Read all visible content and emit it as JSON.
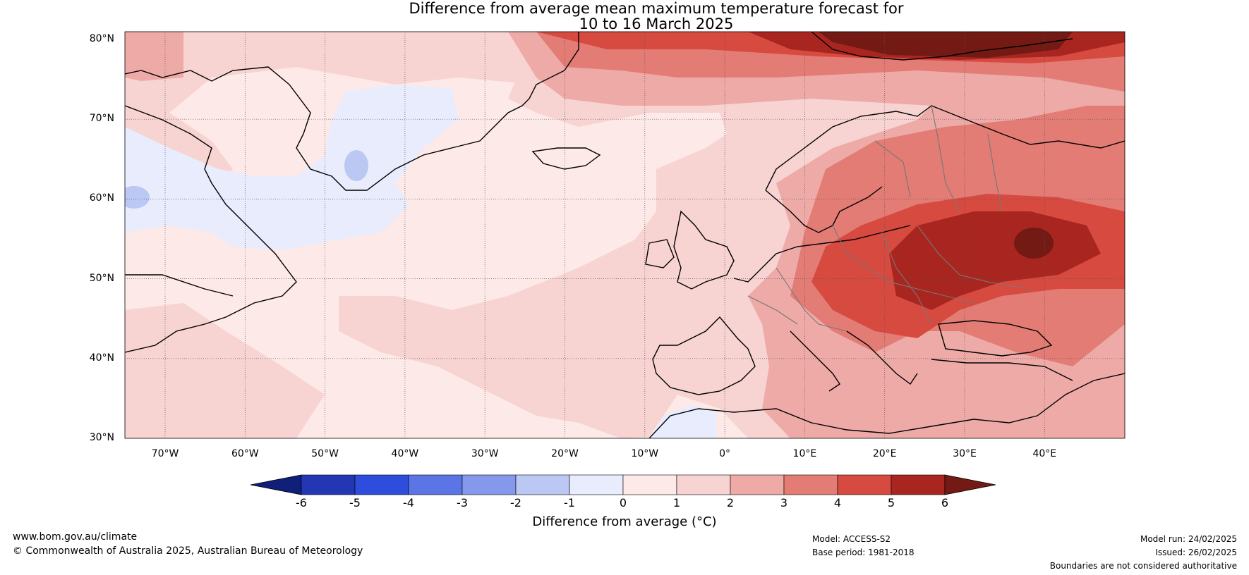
{
  "title_line1": "Difference from average mean maximum temperature forecast for",
  "title_line2": "10 to 16 March 2025",
  "lat_labels": [
    "80°N",
    "70°N",
    "60°N",
    "50°N",
    "40°N",
    "30°N"
  ],
  "lon_labels": [
    "70°W",
    "60°W",
    "50°W",
    "40°W",
    "30°W",
    "20°W",
    "10°W",
    "0°",
    "10°E",
    "20°E",
    "30°E",
    "40°E"
  ],
  "colorbar": {
    "ticks": [
      "-6",
      "-5",
      "-4",
      "-3",
      "-2",
      "-1",
      "0",
      "1",
      "2",
      "3",
      "4",
      "5",
      "6"
    ],
    "colors": [
      "#0f1f7a",
      "#2337b4",
      "#2d4edd",
      "#5b74e6",
      "#8498ec",
      "#bcc8f4",
      "#e8ecfc",
      "#fde9e7",
      "#f7d3d1",
      "#eeaaa7",
      "#e27c75",
      "#d74a40",
      "#a92620",
      "#731a15"
    ],
    "label": "Difference from average (°C)"
  },
  "footer": {
    "site": "www.bom.gov.au/climate",
    "copyright": "© Commonwealth of Australia 2025, Australian Bureau of Meteorology",
    "model": "Model: ACCESS-S2",
    "base_period": "Base period: 1981-2018",
    "model_run": "Model run: 24/02/2025",
    "issued": "Issued: 26/02/2025",
    "disclaimer": "Boundaries are not considered authoritative"
  }
}
